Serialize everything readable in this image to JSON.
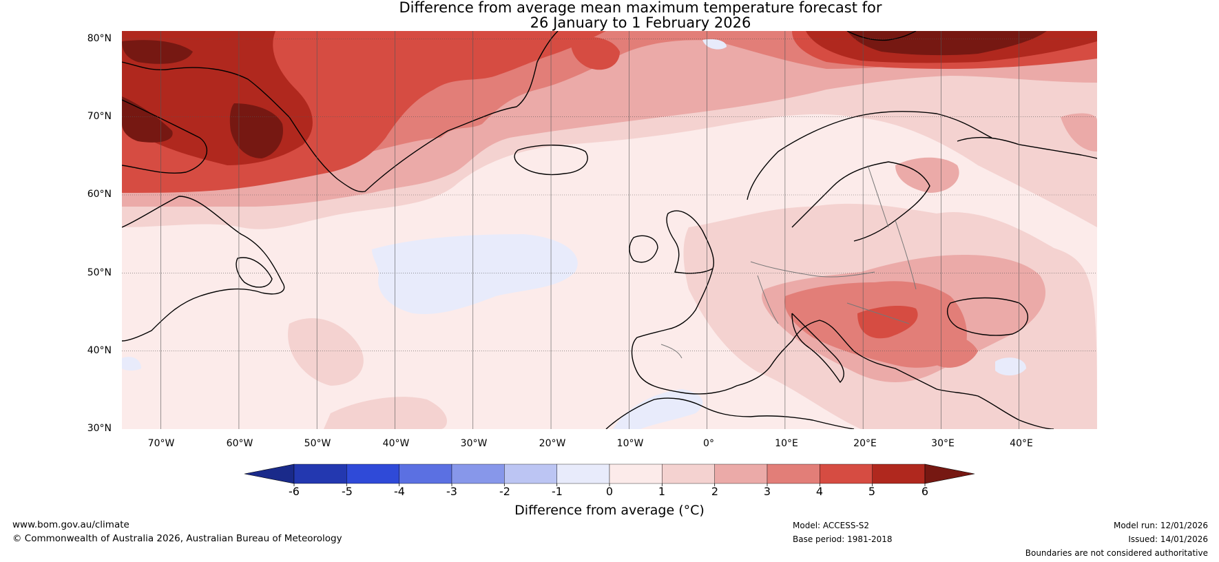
{
  "title": {
    "line1": "Difference from average mean maximum temperature forecast for",
    "line2": "26 January to 1 February 2026"
  },
  "map": {
    "lat_labels": [
      "80°N",
      "70°N",
      "60°N",
      "50°N",
      "40°N",
      "30°N"
    ],
    "lon_labels": [
      "70°W",
      "60°W",
      "50°W",
      "40°W",
      "30°W",
      "20°W",
      "10°W",
      "0°",
      "10°E",
      "20°E",
      "30°E",
      "40°E"
    ],
    "extent": {
      "lon_min": -75,
      "lon_max": 50,
      "lat_min": 30,
      "lat_max": 81
    },
    "colors": {
      "land_outline": "#000000",
      "border": "#777777",
      "grid": "#555555"
    }
  },
  "colorbar": {
    "ticks": [
      "-6",
      "-5",
      "-4",
      "-3",
      "-2",
      "-1",
      "0",
      "1",
      "2",
      "3",
      "4",
      "5",
      "6"
    ],
    "colors": [
      "#1a2a8a",
      "#2338b0",
      "#2f4ad8",
      "#5b70e2",
      "#8797ea",
      "#bcc5f3",
      "#e8ebfb",
      "#fcebea",
      "#f4d2d0",
      "#ebaaa8",
      "#e27e78",
      "#d64c42",
      "#b0281e",
      "#761812"
    ],
    "label": "Difference from average (°C)"
  },
  "footer": {
    "website": "www.bom.gov.au/climate",
    "copyright": "© Commonwealth of Australia 2026, Australian Bureau of Meteorology",
    "model": "Model: ACCESS-S2",
    "base_period": "Base period: 1981-2018",
    "model_run": "Model run: 12/01/2026",
    "issued": "Issued: 14/01/2026",
    "disclaimer": "Boundaries are not considered authoritative"
  }
}
